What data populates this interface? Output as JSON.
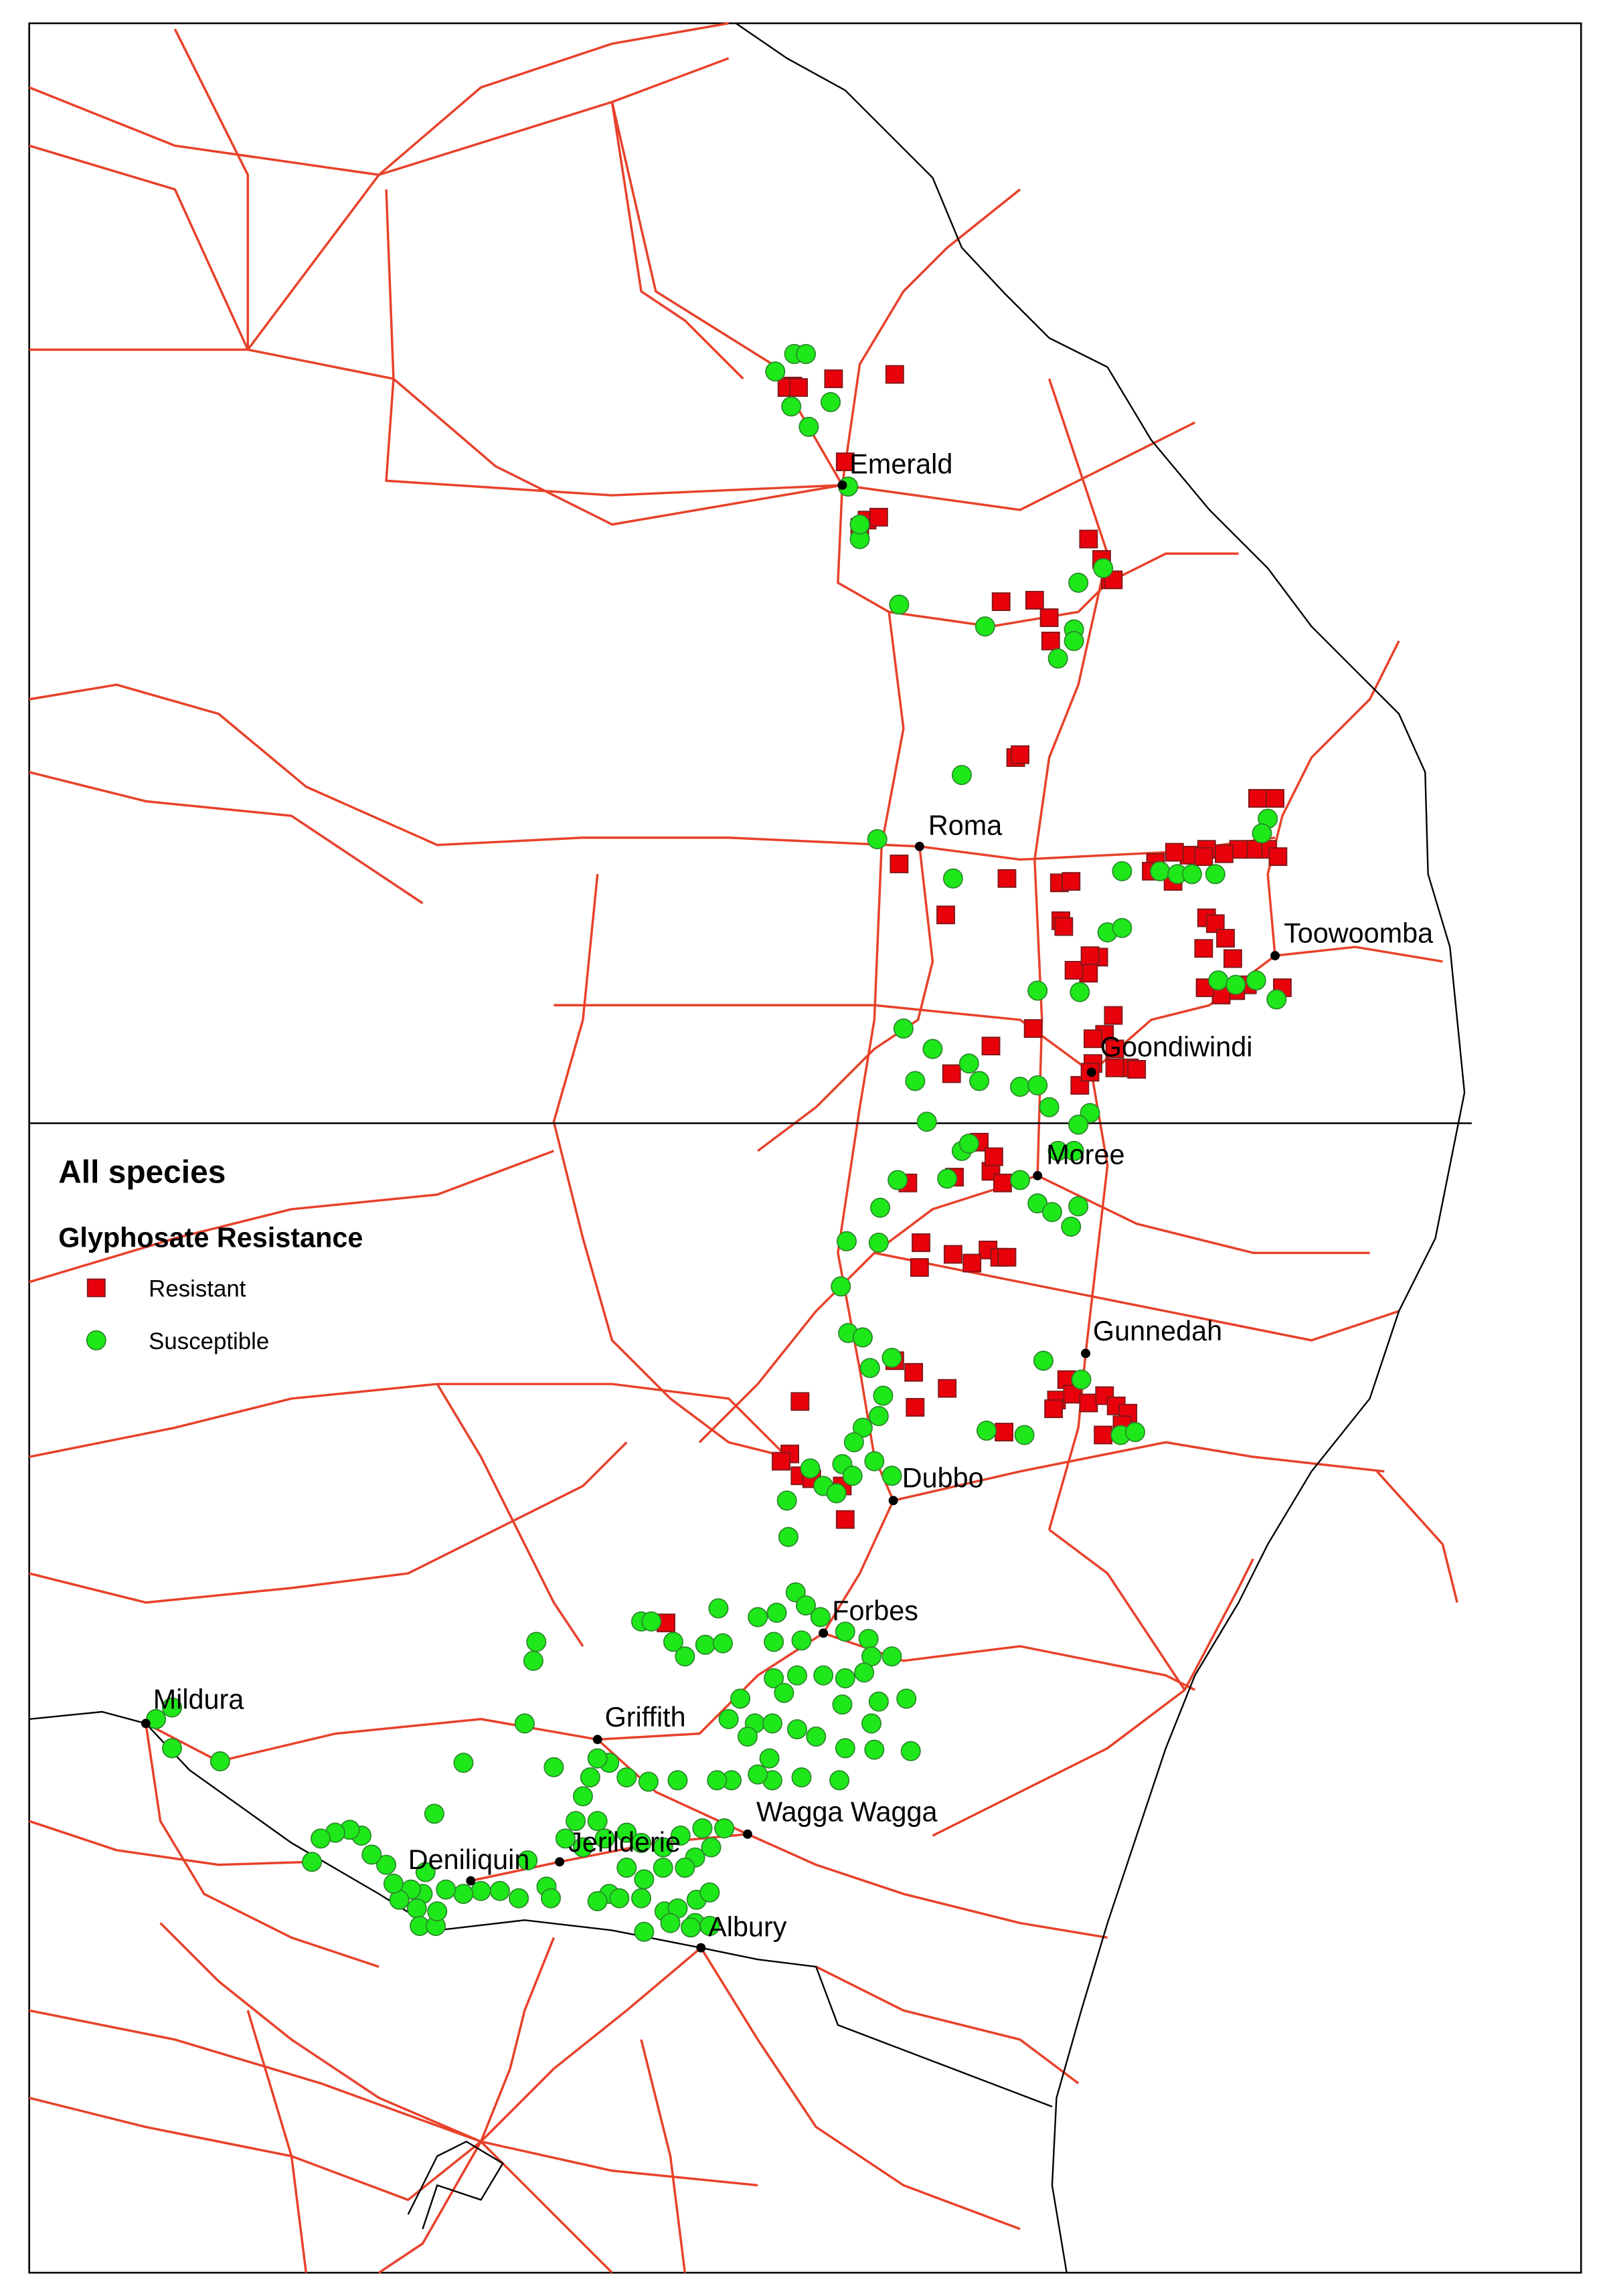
{
  "legend": {
    "title": "All species",
    "subtitle": "Glyphosate Resistance",
    "items": [
      "Resistant",
      "Susceptible"
    ]
  },
  "towns": [
    "Emerald",
    "Roma",
    "Toowoomba",
    "Goondiwindi",
    "Moree",
    "Gunnedah",
    "Dubbo",
    "Forbes",
    "Mildura",
    "Griffith",
    "Wagga Wagga",
    "Jerilderie",
    "Deniliquin",
    "Albury"
  ]
}
